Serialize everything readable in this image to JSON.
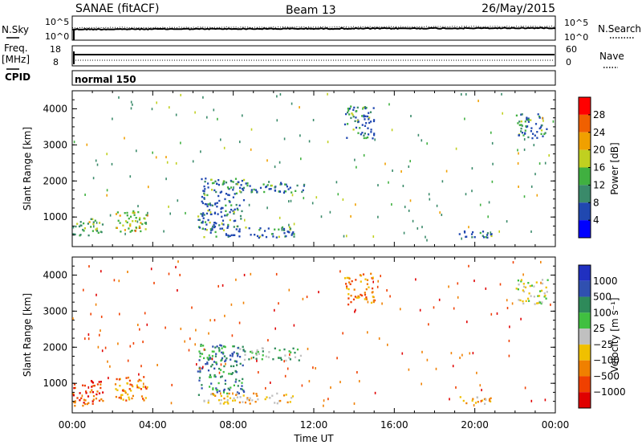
{
  "header": {
    "station": "SANAE (fitACF)",
    "beam": "Beam 13",
    "date": "26/May/2015"
  },
  "top_panels": {
    "nsky_label": "N.Sky",
    "nsearch_label": "N.Search",
    "nsky_ticks": [
      "10^5",
      "10^0"
    ],
    "nsearch_ticks": [
      "10^5",
      "10^0"
    ],
    "freq_label": "Freq.",
    "freq_unit": "[MHz]",
    "freq_ticks": [
      "18",
      "8"
    ],
    "nave_label": "Nave",
    "nave_ticks": [
      "60",
      "0"
    ],
    "cpid_label": "CPID",
    "cpid_value": "normal 150"
  },
  "power_panel": {
    "ylabel": "Slant Range [km]",
    "yticks": [
      "4000",
      "3000",
      "2000",
      "1000"
    ],
    "colorbar_label": "Power [dB]",
    "colorbar_ticks": [
      "28",
      "24",
      "20",
      "16",
      "12",
      "8",
      "4"
    ],
    "colors": [
      "#0000ff",
      "#2048b0",
      "#3a8a6a",
      "#40b040",
      "#c0d020",
      "#f0a000",
      "#f06000",
      "#ff0000"
    ]
  },
  "velocity_panel": {
    "ylabel": "Slant Range [km]",
    "yticks": [
      "4000",
      "3000",
      "2000",
      "1000"
    ],
    "colorbar_label": "Velocity [m s⁻¹]",
    "colorbar_ticks": [
      "1000",
      "500",
      "100",
      "25",
      "−25",
      "−100",
      "−500",
      "−1000"
    ],
    "colors": [
      "#2030c0",
      "#3050b0",
      "#2e8a5a",
      "#40c040",
      "#c0c0c0",
      "#f0c000",
      "#f08000",
      "#f04000",
      "#e00000"
    ]
  },
  "xaxis": {
    "label": "Time UT",
    "ticks": [
      "00:00",
      "04:00",
      "08:00",
      "12:00",
      "16:00",
      "20:00",
      "00:00"
    ]
  },
  "chart_data": [
    {
      "type": "heatmap",
      "title": "Power",
      "xlabel": "Time UT",
      "ylabel": "Slant Range [km]",
      "xlim": [
        0,
        24
      ],
      "ylim": [
        180,
        4500
      ],
      "zlabel": "Power [dB]",
      "zlim": [
        0,
        32
      ],
      "series": [
        {
          "region": "echo",
          "time_h": [
            0.0,
            1.5
          ],
          "range_km": [
            500,
            1000
          ],
          "value": 12
        },
        {
          "region": "echo",
          "time_h": [
            2.1,
            3.7
          ],
          "range_km": [
            600,
            1200
          ],
          "value": 16
        },
        {
          "region": "echo",
          "time_h": [
            6.2,
            8.5
          ],
          "range_km": [
            700,
            2100
          ],
          "value": 8
        },
        {
          "region": "echo",
          "time_h": [
            8.3,
            11.5
          ],
          "range_km": [
            1700,
            2000
          ],
          "value": 6
        },
        {
          "region": "echo",
          "time_h": [
            6.5,
            11.0
          ],
          "range_km": [
            450,
            750
          ],
          "value": 6
        },
        {
          "region": "echo",
          "time_h": [
            13.5,
            15.0
          ],
          "range_km": [
            3200,
            4100
          ],
          "value": 8
        },
        {
          "region": "echo",
          "time_h": [
            19.2,
            20.8
          ],
          "range_km": [
            450,
            650
          ],
          "value": 6
        },
        {
          "region": "echo",
          "time_h": [
            22.0,
            23.6
          ],
          "range_km": [
            3200,
            3900
          ],
          "value": 6
        }
      ]
    },
    {
      "type": "heatmap",
      "title": "Velocity",
      "xlabel": "Time UT",
      "ylabel": "Slant Range [km]",
      "xlim": [
        0,
        24
      ],
      "ylim": [
        180,
        4500
      ],
      "zlabel": "Velocity [m s⁻¹]",
      "zlim": [
        -1000,
        1000
      ],
      "series": [
        {
          "region": "echo",
          "time_h": [
            0.0,
            1.5
          ],
          "range_km": [
            400,
            1100
          ],
          "value": -300
        },
        {
          "region": "echo",
          "time_h": [
            2.1,
            3.7
          ],
          "range_km": [
            550,
            1200
          ],
          "value": -150
        },
        {
          "region": "echo",
          "time_h": [
            6.2,
            8.5
          ],
          "range_km": [
            700,
            2100
          ],
          "value": 100
        },
        {
          "region": "echo",
          "time_h": [
            8.3,
            11.5
          ],
          "range_km": [
            1650,
            2000
          ],
          "value": 60
        },
        {
          "region": "echo",
          "time_h": [
            6.5,
            11.0
          ],
          "range_km": [
            450,
            750
          ],
          "value": -40
        },
        {
          "region": "echo",
          "time_h": [
            13.5,
            15.0
          ],
          "range_km": [
            3200,
            4100
          ],
          "value": -200
        },
        {
          "region": "echo",
          "time_h": [
            19.2,
            20.8
          ],
          "range_km": [
            450,
            650
          ],
          "value": -80
        },
        {
          "region": "echo",
          "time_h": [
            22.0,
            23.6
          ],
          "range_km": [
            3200,
            3900
          ],
          "value": 0
        }
      ]
    }
  ]
}
